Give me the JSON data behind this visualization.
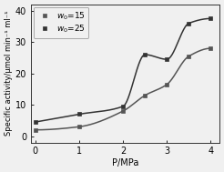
{
  "title": "",
  "xlabel": "P/MPa",
  "ylabel": "Specific activity/μmol min⁻¹ ml⁻¹",
  "xlim": [
    -0.1,
    4.2
  ],
  "ylim": [
    -2,
    42
  ],
  "xticks": [
    0,
    1,
    2,
    3,
    4
  ],
  "yticks": [
    0,
    10,
    20,
    30,
    40
  ],
  "series": [
    {
      "label": "$w_0$=15",
      "x": [
        0,
        1,
        2,
        2.5,
        3,
        3.5,
        4
      ],
      "y": [
        2.0,
        3.0,
        8.0,
        13.0,
        16.5,
        25.5,
        28.0
      ],
      "color": "#555555",
      "marker": "s",
      "markersize": 3.5,
      "linewidth": 1.1
    },
    {
      "label": "$w_0$=25",
      "x": [
        0,
        1,
        2,
        2.5,
        3,
        3.5,
        4
      ],
      "y": [
        4.5,
        7.0,
        9.5,
        26.0,
        24.5,
        36.0,
        37.5
      ],
      "color": "#333333",
      "marker": "s",
      "markersize": 3.5,
      "linewidth": 1.1
    }
  ],
  "legend_loc": "upper left",
  "background_color": "#f0f0f0",
  "figsize": [
    2.46,
    1.89
  ],
  "dpi": 100
}
